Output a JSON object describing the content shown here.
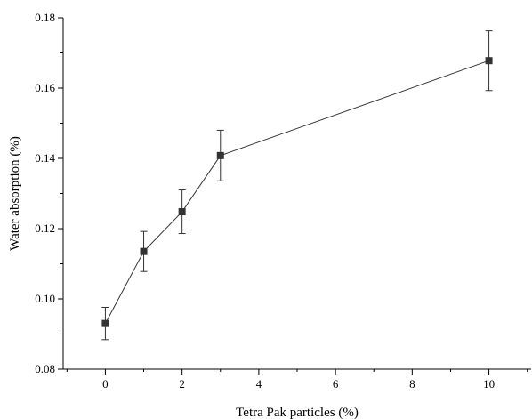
{
  "chart_data": {
    "type": "line",
    "xlabel": "Tetra Pak particles (%)",
    "ylabel": "Water absorption (%)",
    "xlim": [
      -1.1,
      11.1
    ],
    "ylim": [
      0.08,
      0.18
    ],
    "x_ticks": [
      0,
      2,
      4,
      6,
      8,
      10
    ],
    "x_tick_labels": [
      "0",
      "2",
      "4",
      "6",
      "8",
      "10"
    ],
    "y_ticks": [
      0.08,
      0.1,
      0.12,
      0.14,
      0.16,
      0.18
    ],
    "y_tick_labels": [
      "0.08",
      "0.10",
      "0.12",
      "0.14",
      "0.16",
      "0.18"
    ],
    "grid": false,
    "marker": "square",
    "color": "#333333",
    "series": [
      {
        "x": [
          0,
          1,
          2,
          3,
          10
        ],
        "y": [
          0.093,
          0.1135,
          0.1248,
          0.1408,
          0.1678
        ],
        "error": [
          0.0046,
          0.0057,
          0.0062,
          0.0072,
          0.0085
        ]
      }
    ]
  }
}
